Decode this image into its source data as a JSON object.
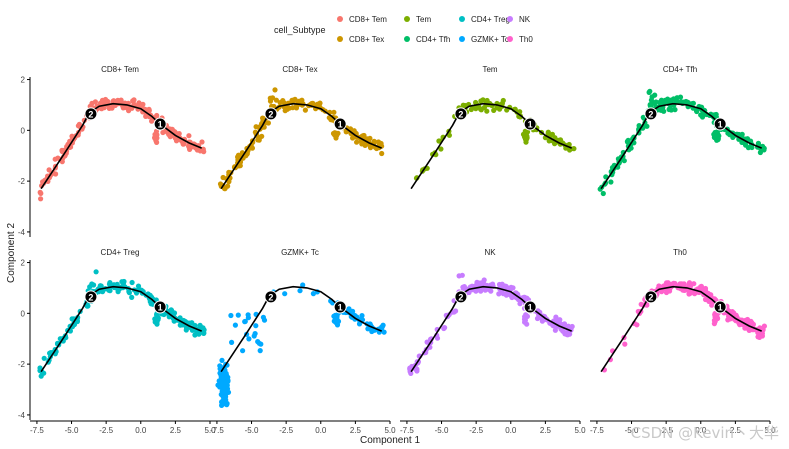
{
  "chart_data": {
    "type": "scatter",
    "title": "",
    "xlabel": "Component 1",
    "ylabel": "Component 2",
    "xlim": [
      -8,
      5
    ],
    "ylim": [
      -4.2,
      2.1
    ],
    "xticks": [
      -7.5,
      -5.0,
      -2.5,
      0.0,
      2.5,
      5.0
    ],
    "xtick_labels": [
      "-7.5",
      "-5.0",
      "-2.5",
      "0.0",
      "2.5",
      "5.0"
    ],
    "yticks": [
      2,
      0,
      -2,
      -4
    ],
    "ytick_labels": [
      "2",
      "0",
      "-2",
      "-4"
    ],
    "grid": false,
    "legend": {
      "title": "cell_Subtype",
      "position": "top",
      "entries": [
        {
          "name": "CD8+ Tem",
          "color": "#F8766D"
        },
        {
          "name": "Tem",
          "color": "#7CAE00"
        },
        {
          "name": "CD4+ Treg",
          "color": "#00BFC4"
        },
        {
          "name": "NK",
          "color": "#C77CFF"
        },
        {
          "name": "CD8+ Tex",
          "color": "#CD9600"
        },
        {
          "name": "CD4+ Tfh",
          "color": "#00BE67"
        },
        {
          "name": "GZMK+ Tc",
          "color": "#00A9FF"
        },
        {
          "name": "Th0",
          "color": "#FF61CC"
        }
      ]
    },
    "trajectory": {
      "x": [
        -7.2,
        -5.5,
        -4.2,
        -3.7,
        -3.0,
        -2.0,
        -1.0,
        0.0,
        0.8,
        1.4,
        2.5,
        3.5,
        4.4
      ],
      "y": [
        -2.3,
        -0.9,
        0.2,
        0.7,
        0.95,
        1.05,
        1.0,
        0.85,
        0.55,
        0.25,
        -0.2,
        -0.5,
        -0.7
      ]
    },
    "branch_nodes": [
      {
        "label": "1",
        "x": 1.4,
        "y": 0.25
      },
      {
        "label": "2",
        "x": -3.6,
        "y": 0.65
      }
    ],
    "panels": [
      {
        "name": "CD8+ Tem",
        "color": "#F8766D"
      },
      {
        "name": "CD8+ Tex",
        "color": "#CD9600"
      },
      {
        "name": "Tem",
        "color": "#7CAE00"
      },
      {
        "name": "CD4+ Tfh",
        "color": "#00BE67"
      },
      {
        "name": "CD4+ Treg",
        "color": "#00BFC4"
      },
      {
        "name": "GZMK+ Tc",
        "color": "#00A9FF"
      },
      {
        "name": "NK",
        "color": "#C77CFF"
      },
      {
        "name": "Th0",
        "color": "#FF61CC"
      }
    ]
  },
  "watermark": "CSDN @Kevin丶大华"
}
